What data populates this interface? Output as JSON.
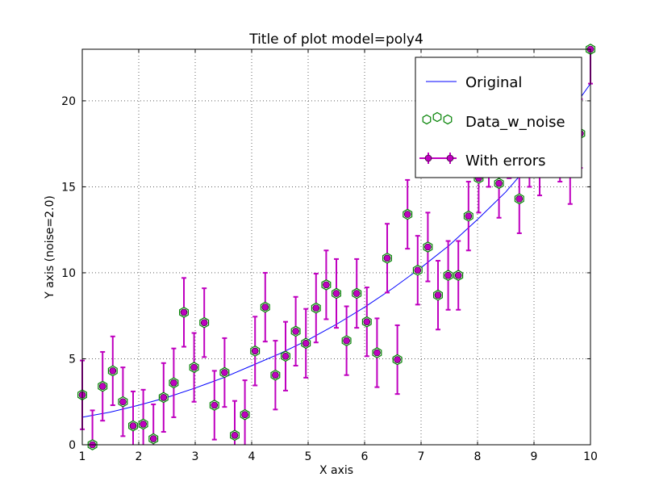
{
  "chart_data": {
    "type": "scatter",
    "title": "Title of plot  model=poly4",
    "xlabel": "X axis",
    "ylabel": "Y axis (noise=2.0)",
    "xlim": [
      1,
      10
    ],
    "ylim": [
      0,
      23
    ],
    "xticks": [
      1,
      2,
      3,
      4,
      5,
      6,
      7,
      8,
      9,
      10
    ],
    "yticks": [
      0,
      5,
      10,
      15,
      20
    ],
    "grid": true,
    "legend_position": "top-right",
    "error": 2.0,
    "series": [
      {
        "name": "Original",
        "kind": "line",
        "color": "#0000ff",
        "x": [
          1.0,
          1.5,
          2.0,
          2.5,
          3.0,
          3.5,
          4.0,
          4.5,
          5.0,
          5.5,
          6.0,
          6.5,
          7.0,
          7.5,
          8.0,
          8.5,
          9.0,
          9.5,
          10.0
        ],
        "y": [
          1.6,
          1.9,
          2.3,
          2.75,
          3.3,
          3.9,
          4.6,
          5.3,
          6.1,
          7.0,
          8.0,
          9.1,
          10.3,
          11.6,
          13.1,
          14.7,
          16.6,
          18.7,
          21.0
        ]
      },
      {
        "name": "Data_w_noise",
        "kind": "markers",
        "color": "#008000",
        "marker": "hexagon"
      },
      {
        "name": "With errors",
        "kind": "errorbar",
        "color": "#bf00bf"
      }
    ],
    "points": {
      "x": [
        1.0,
        1.18,
        1.36,
        1.54,
        1.72,
        1.9,
        2.08,
        2.26,
        2.44,
        2.62,
        2.8,
        2.98,
        3.16,
        3.34,
        3.52,
        3.7,
        3.88,
        4.06,
        4.24,
        4.42,
        4.6,
        4.78,
        4.96,
        5.14,
        5.32,
        5.5,
        5.68,
        5.86,
        6.04,
        6.22,
        6.4,
        6.58,
        6.76,
        6.94,
        7.12,
        7.3,
        7.48,
        7.66,
        7.84,
        8.02,
        8.2,
        8.38,
        8.56,
        8.74,
        8.92,
        9.1,
        9.28,
        9.46,
        9.64,
        9.82,
        10.0
      ],
      "y": [
        2.9,
        0.0,
        3.4,
        4.3,
        2.5,
        1.1,
        1.2,
        0.35,
        2.75,
        3.6,
        7.7,
        4.5,
        7.1,
        2.3,
        4.2,
        0.55,
        1.75,
        5.45,
        8.0,
        4.05,
        5.15,
        6.6,
        5.9,
        7.95,
        9.3,
        8.8,
        6.05,
        8.8,
        7.15,
        5.35,
        10.85,
        4.95,
        13.4,
        10.15,
        11.5,
        8.7,
        9.85,
        9.85,
        13.3,
        15.5,
        17.0,
        15.2,
        17.5,
        14.3,
        17.0,
        16.5,
        18.0,
        17.3,
        16.0,
        18.1,
        23.0
      ]
    }
  }
}
